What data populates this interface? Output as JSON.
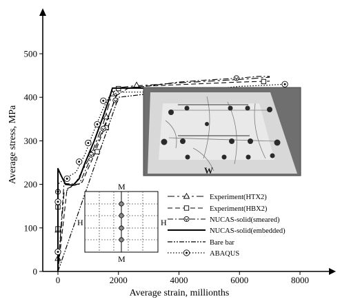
{
  "chart_data": {
    "type": "line",
    "xlabel": "Average strain, millionths",
    "ylabel": "Average stress, MPa",
    "xlim": [
      -600,
      8600
    ],
    "ylim": [
      0,
      560
    ],
    "xticks": [
      0,
      2000,
      4000,
      6000,
      8000
    ],
    "yticks": [
      0,
      100,
      200,
      300,
      400,
      500
    ],
    "legend_position": "lower-right",
    "series": [
      {
        "name": "Experiment(HTX2)",
        "style": "long-dash",
        "marker": "triangle",
        "points": [
          [
            0,
            0
          ],
          [
            200,
            180
          ],
          [
            600,
            205
          ],
          [
            1100,
            268
          ],
          [
            1500,
            340
          ],
          [
            1800,
            410
          ],
          [
            2000,
            422
          ],
          [
            2500,
            426
          ],
          [
            3000,
            428
          ],
          [
            4000,
            433
          ],
          [
            5000,
            437
          ],
          [
            6000,
            441
          ],
          [
            7000,
            446
          ]
        ],
        "markers": [
          [
            0,
            30
          ],
          [
            0,
            95
          ],
          [
            1100,
            270
          ],
          [
            1600,
            355
          ],
          [
            1800,
            408
          ],
          [
            2600,
            428
          ]
        ]
      },
      {
        "name": "Experiment(HBX2)",
        "style": "dash",
        "marker": "square",
        "points": [
          [
            0,
            0
          ],
          [
            300,
            190
          ],
          [
            800,
            205
          ],
          [
            1200,
            268
          ],
          [
            1700,
            360
          ],
          [
            2000,
            420
          ],
          [
            3000,
            426
          ],
          [
            4000,
            429
          ],
          [
            5000,
            432
          ],
          [
            6000,
            435
          ],
          [
            7000,
            437
          ]
        ],
        "markers": [
          [
            0,
            98
          ],
          [
            0,
            148
          ],
          [
            1300,
            275
          ],
          [
            1600,
            330
          ],
          [
            2000,
            420
          ],
          [
            6800,
            436
          ]
        ]
      },
      {
        "name": "NUCAS-solid(smeared)",
        "style": "dash-dot",
        "marker": "circle-v",
        "points": [
          [
            0,
            0
          ],
          [
            200,
            202
          ],
          [
            700,
            200
          ],
          [
            1200,
            278
          ],
          [
            1600,
            345
          ],
          [
            1950,
            405
          ],
          [
            2300,
            420
          ],
          [
            3000,
            426
          ],
          [
            4000,
            435
          ],
          [
            5000,
            440
          ],
          [
            6000,
            444
          ],
          [
            6600,
            448
          ],
          [
            7000,
            448
          ]
        ],
        "markers": [
          [
            0,
            183
          ],
          [
            1100,
            268
          ],
          [
            1500,
            328
          ],
          [
            1900,
            393
          ],
          [
            5900,
            444
          ]
        ]
      },
      {
        "name": "NUCAS-solid(embedded)",
        "style": "solid",
        "marker": "none",
        "points": [
          [
            0,
            0
          ],
          [
            0,
            236
          ],
          [
            120,
            218
          ],
          [
            250,
            200
          ],
          [
            500,
            198
          ],
          [
            700,
            213
          ],
          [
            900,
            250
          ],
          [
            1200,
            300
          ],
          [
            1500,
            357
          ],
          [
            1700,
            398
          ],
          [
            1800,
            421
          ],
          [
            2000,
            421
          ],
          [
            3000,
            421
          ],
          [
            4000,
            421
          ],
          [
            5000,
            421
          ],
          [
            6000,
            421
          ],
          [
            7000,
            421
          ]
        ],
        "markers": []
      },
      {
        "name": "Bare bar",
        "style": "dash-dot-dot",
        "marker": "none",
        "points": [
          [
            0,
            0
          ],
          [
            2000,
            400
          ],
          [
            3000,
            408
          ],
          [
            4000,
            410
          ],
          [
            5000,
            411
          ],
          [
            6000,
            412
          ],
          [
            7000,
            413
          ],
          [
            7500,
            413
          ]
        ],
        "markers": []
      },
      {
        "name": "ABAQUS",
        "style": "dotted",
        "marker": "circle",
        "points": [
          [
            0,
            0
          ],
          [
            0,
            200
          ],
          [
            200,
            212
          ],
          [
            600,
            228
          ],
          [
            900,
            270
          ],
          [
            1200,
            325
          ],
          [
            1500,
            375
          ],
          [
            1700,
            402
          ],
          [
            2000,
            412
          ],
          [
            3000,
            412
          ],
          [
            4000,
            414
          ],
          [
            5000,
            418
          ],
          [
            6000,
            425
          ],
          [
            7000,
            428
          ],
          [
            7500,
            430
          ]
        ],
        "markers": [
          [
            0,
            45
          ],
          [
            0,
            160
          ],
          [
            300,
            213
          ],
          [
            700,
            252
          ],
          [
            1000,
            295
          ],
          [
            1300,
            338
          ],
          [
            1500,
            392
          ],
          [
            3200,
            404
          ],
          [
            4000,
            412
          ],
          [
            7500,
            430
          ]
        ]
      }
    ],
    "schematic_labels": {
      "top": "M",
      "bottom": "M",
      "left": "H",
      "right": "H"
    },
    "photo_label": "W"
  }
}
